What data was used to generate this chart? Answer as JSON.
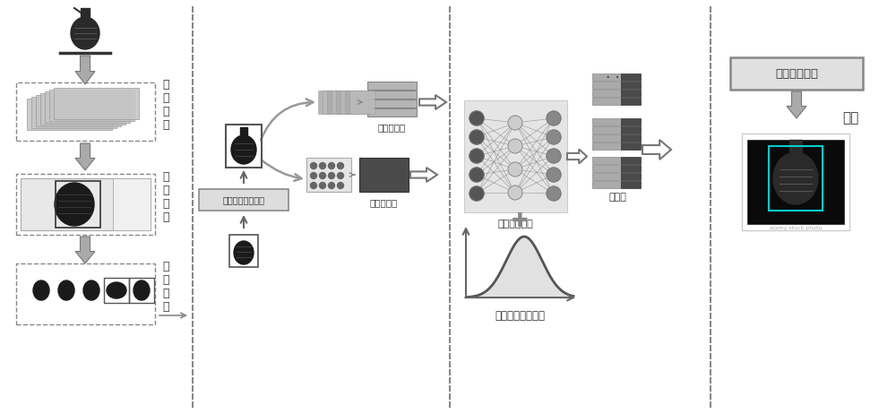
{
  "bg_color": "#ffffff",
  "text_color": "#333333",
  "label_shujuqingxi": "数\n据\n清\n洗",
  "label_shujubiaozhu": "数\n据\n标\n注",
  "label_shujuzengqiang": "数\n据\n增\n强",
  "label_gaocezheng": "高层次特征",
  "label_dicezheng": "低层次特征",
  "label_zhuganzhuqu": "主干特征提取网络",
  "label_tezhengronghe": "特征融合网络",
  "label_tezhengtu": "特征图",
  "label_leibieyunheng": "类别均衡损失函数",
  "label_shengcheng": "生成网络模型",
  "label_yuce": "预测",
  "dashed_line_color": "#888888",
  "arrow_color": "#888888",
  "box_light_gray": "#c8c8c8",
  "box_dark_gray": "#555555",
  "box_mid_gray": "#999999"
}
